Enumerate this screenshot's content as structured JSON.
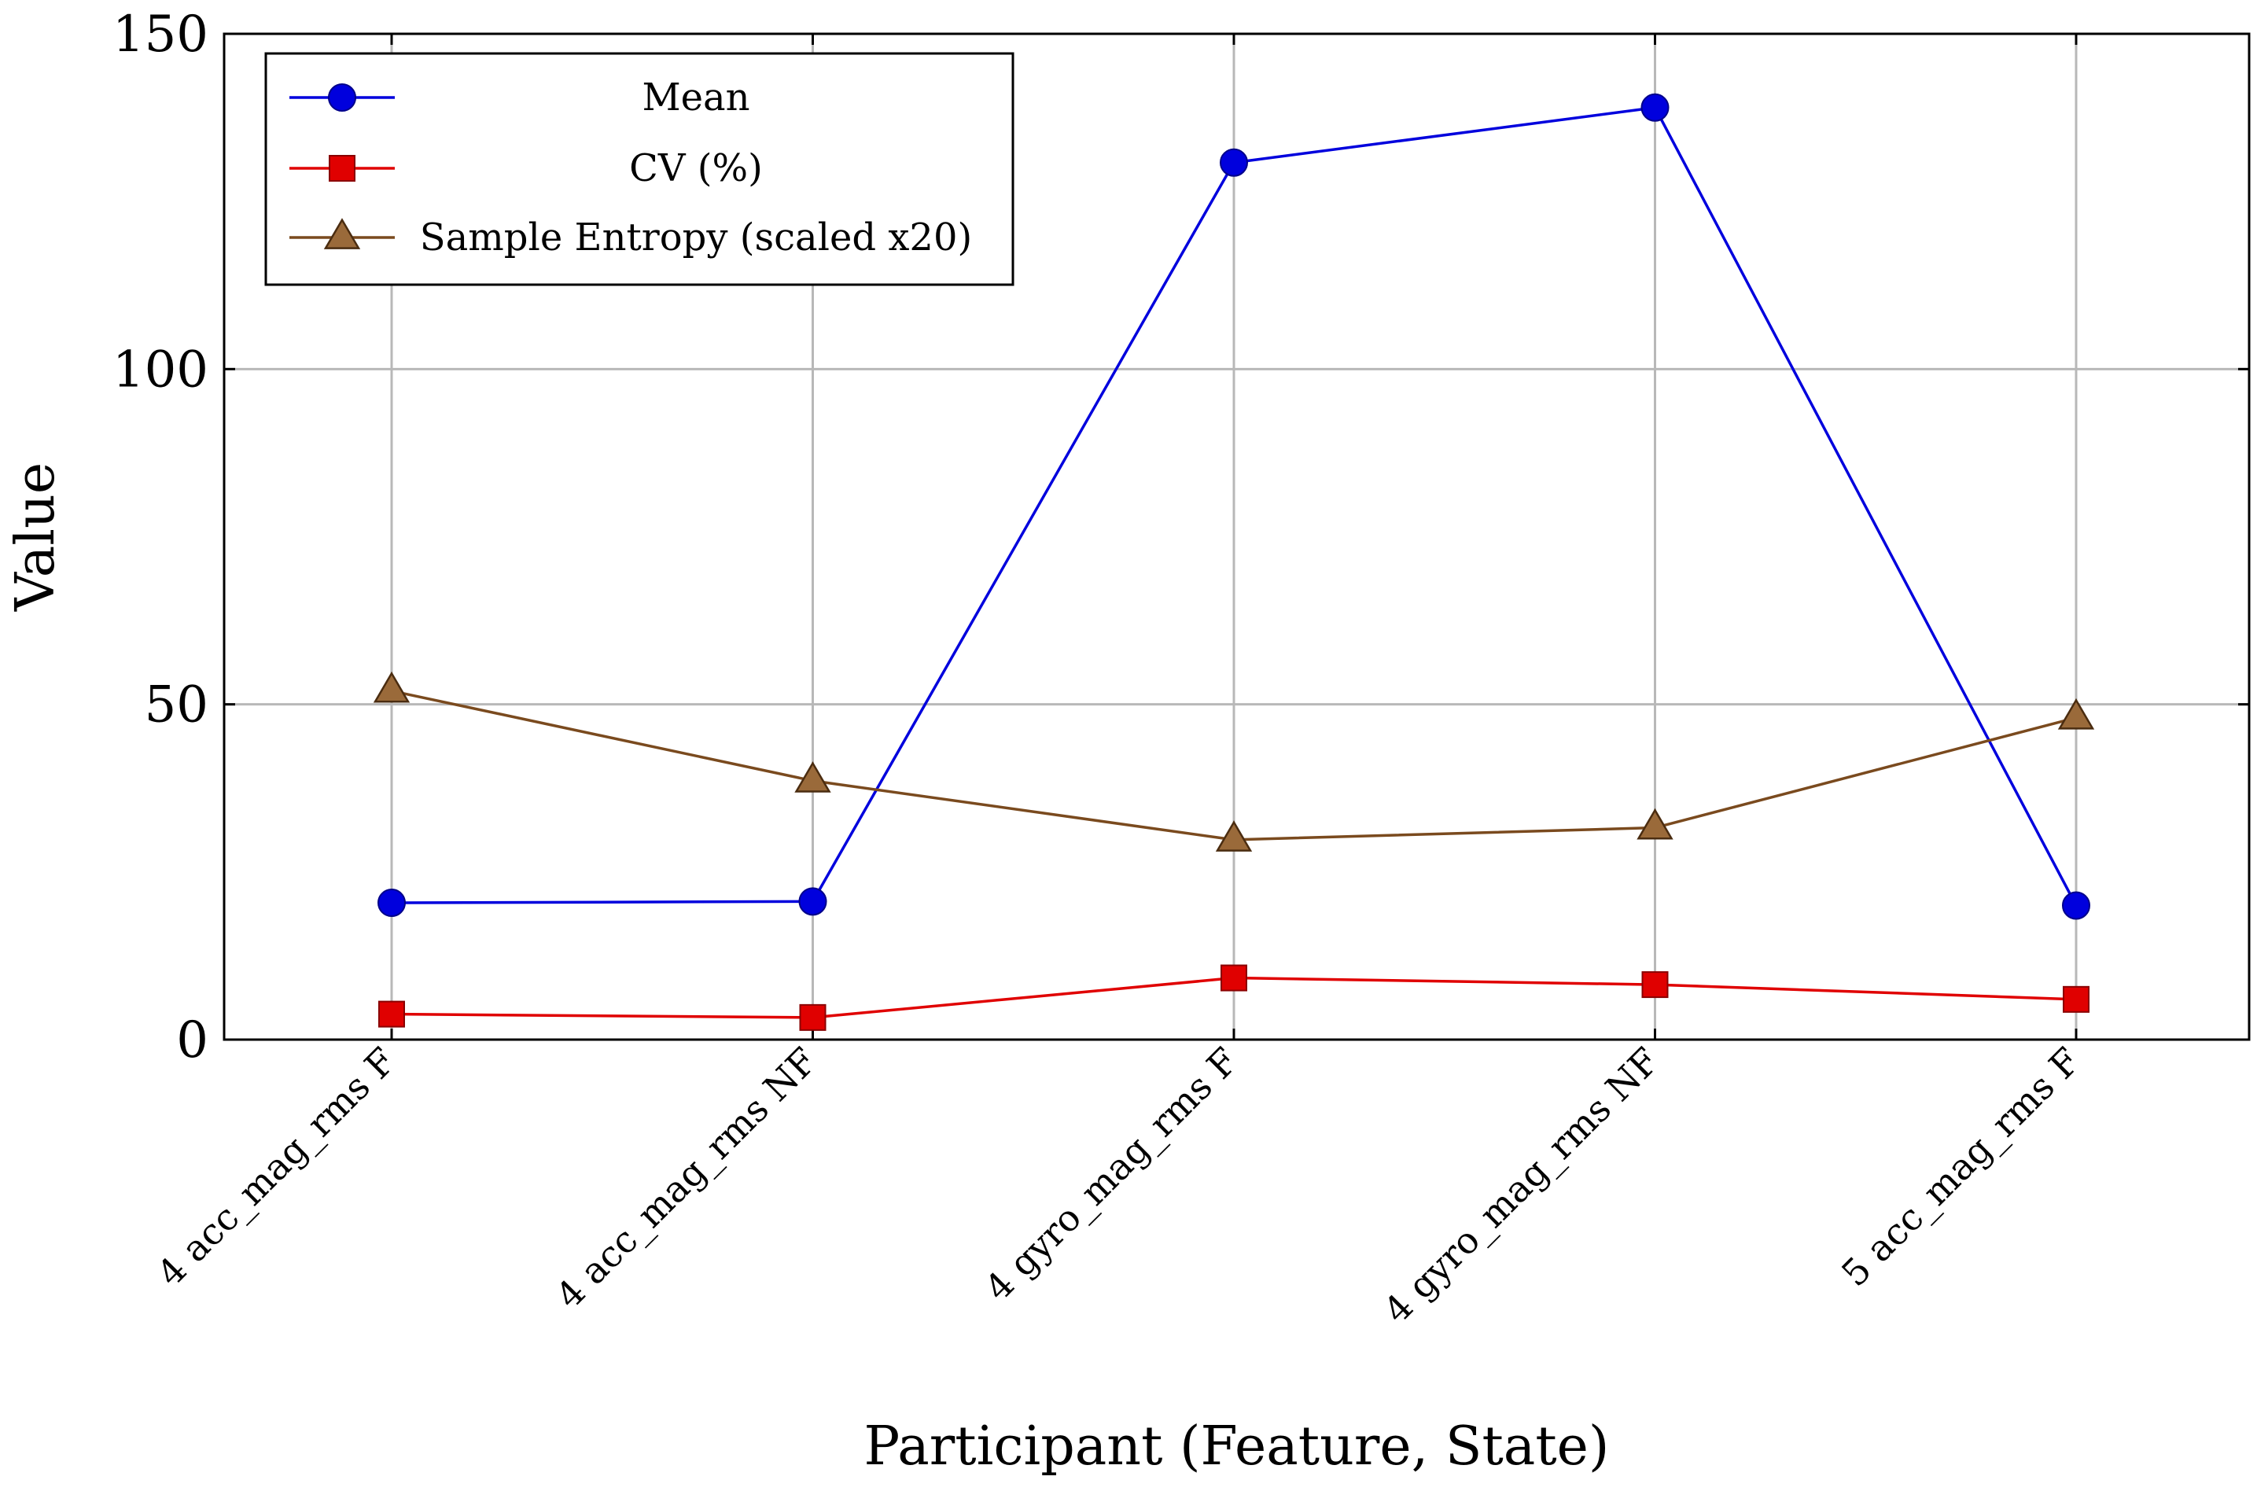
{
  "chart_data": {
    "type": "line",
    "xlabel": "Participant (Feature, State)",
    "ylabel": "Value",
    "categories": [
      "4 acc_mag_rms F",
      "4 acc_mag_rms NF",
      "4 gyro_mag_rms F",
      "4 gyro_mag_rms NF",
      "5 acc_mag_rms F"
    ],
    "ylim": [
      0,
      150
    ],
    "yticks": [
      0,
      50,
      100,
      150
    ],
    "grid": true,
    "legend_position": "top-left",
    "series": [
      {
        "name": "Mean",
        "color": "#0000dd",
        "marker": "circle",
        "values": [
          20.4,
          20.6,
          130.8,
          139.0,
          20.0
        ]
      },
      {
        "name": "CV (%)",
        "color": "#e00000",
        "marker": "square",
        "values": [
          3.8,
          3.3,
          9.2,
          8.2,
          6.0
        ]
      },
      {
        "name": "Sample Entropy (scaled x20)",
        "color": "#7a4a1e",
        "marker": "triangle",
        "values": [
          52.0,
          38.6,
          29.8,
          31.6,
          48.0
        ]
      }
    ]
  }
}
